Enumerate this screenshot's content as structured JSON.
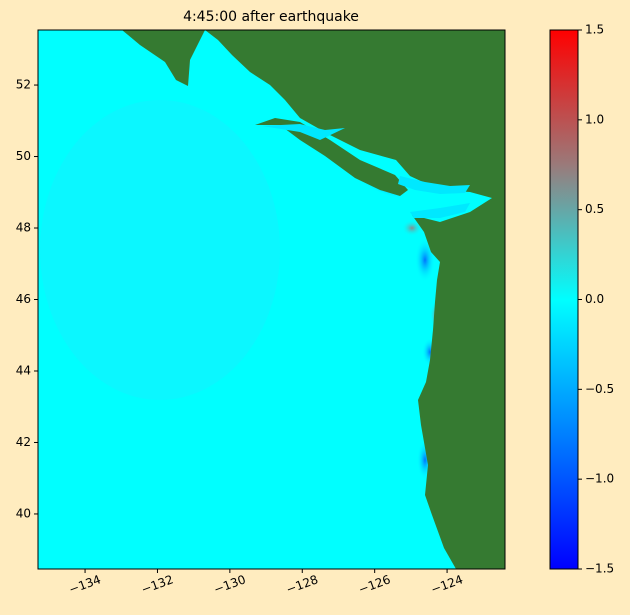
{
  "chart_data": {
    "type": "map",
    "title": "4:45:00 after earthquake",
    "xlim": [
      -135.3,
      -122.4
    ],
    "ylim": [
      38.46,
      53.54
    ],
    "xticks": [
      {
        "value": -134,
        "label": "−134"
      },
      {
        "value": -132,
        "label": "−132"
      },
      {
        "value": -130,
        "label": "−130"
      },
      {
        "value": -128,
        "label": "−128"
      },
      {
        "value": -126,
        "label": "−126"
      },
      {
        "value": -124,
        "label": "−124"
      }
    ],
    "yticks": [
      40,
      42,
      44,
      46,
      48,
      50,
      52
    ],
    "land_color": "#357a31",
    "colorbar": {
      "lim": [
        -1.5,
        1.5
      ],
      "ticks": [
        {
          "value": -1.5,
          "label": "−1.5"
        },
        {
          "value": -1.0,
          "label": "−1.0"
        },
        {
          "value": -0.5,
          "label": "−0.5"
        },
        {
          "value": 0.0,
          "label": "0.0"
        },
        {
          "value": 0.5,
          "label": "0.5"
        },
        {
          "value": 1.0,
          "label": "1.0"
        },
        {
          "value": 1.5,
          "label": "1.5"
        }
      ],
      "colormap": [
        "#0000ff",
        "#0080ff",
        "#00ffff",
        "#9a7a7a",
        "#ff0000"
      ]
    }
  }
}
